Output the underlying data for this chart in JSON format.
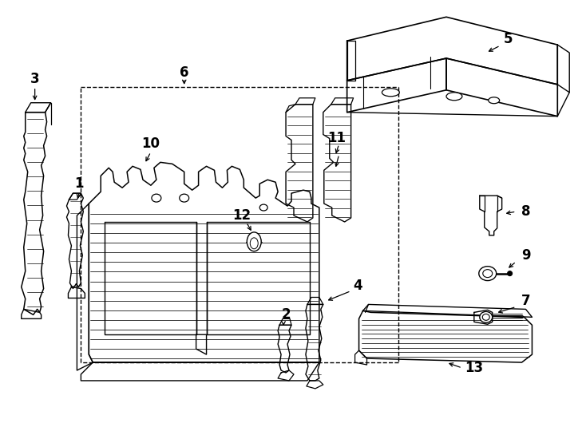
{
  "background_color": "#ffffff",
  "line_color": "#000000",
  "fig_width": 7.34,
  "fig_height": 5.4,
  "dpi": 100
}
